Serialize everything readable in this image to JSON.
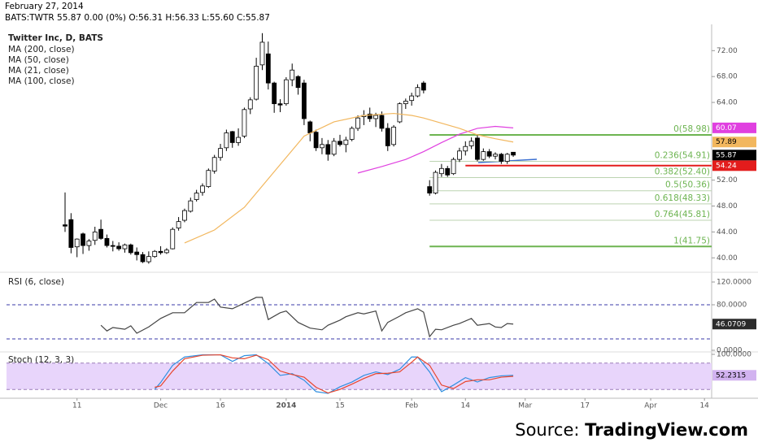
{
  "header": {
    "date": "February 27, 2014",
    "quote": "BATS:TWTR 55.87 0.00 (0%) O:56.31 H:56.33 L:55.60 C:55.87"
  },
  "source": {
    "prefix": "Source:",
    "site": "TradingView.com"
  },
  "chart_data": [
    {
      "type": "candlestick",
      "title": "Twitter Inc, D, BATS",
      "x": [
        0,
        1,
        2,
        3,
        4,
        5,
        6,
        7,
        8,
        9,
        10,
        11,
        12,
        13,
        14,
        15,
        16,
        17,
        18,
        19,
        20,
        21,
        22,
        23,
        24,
        25,
        26,
        27,
        28,
        29,
        30,
        31,
        32,
        33,
        34,
        35,
        36,
        37,
        38,
        39,
        40,
        41,
        42,
        43,
        44,
        45,
        46,
        47,
        48,
        49,
        50,
        51,
        52,
        53,
        54,
        55,
        56,
        57,
        58,
        59,
        60,
        61,
        62,
        63,
        64,
        65,
        66,
        67,
        68,
        69,
        70,
        71,
        72,
        73,
        74,
        75
      ],
      "ohlc": [
        [
          45.1,
          50.1,
          44.0,
          44.9
        ],
        [
          45.9,
          46.9,
          40.7,
          41.6
        ],
        [
          41.7,
          43.0,
          40.1,
          42.9
        ],
        [
          43.7,
          43.9,
          40.6,
          41.9
        ],
        [
          41.9,
          42.9,
          41.1,
          42.6
        ],
        [
          42.7,
          44.8,
          42.0,
          44.0
        ],
        [
          44.4,
          45.9,
          42.8,
          43.0
        ],
        [
          43.0,
          43.6,
          41.6,
          41.9
        ],
        [
          41.9,
          42.6,
          41.0,
          41.8
        ],
        [
          41.8,
          42.4,
          41.1,
          41.4
        ],
        [
          41.4,
          42.2,
          40.8,
          42.0
        ],
        [
          42.0,
          42.2,
          40.5,
          40.8
        ],
        [
          40.9,
          41.6,
          39.6,
          40.5
        ],
        [
          40.5,
          40.9,
          39.2,
          39.4
        ],
        [
          39.4,
          41.0,
          39.1,
          40.2
        ],
        [
          40.2,
          41.2,
          40.0,
          41.0
        ],
        [
          41.0,
          41.8,
          40.5,
          40.8
        ],
        [
          40.8,
          41.5,
          40.6,
          41.2
        ],
        [
          41.4,
          44.7,
          41.3,
          44.4
        ],
        [
          44.6,
          46.3,
          44.2,
          45.6
        ],
        [
          45.8,
          47.6,
          45.5,
          47.3
        ],
        [
          47.2,
          49.3,
          47.0,
          48.8
        ],
        [
          49.0,
          50.5,
          48.7,
          50.0
        ],
        [
          50.1,
          51.5,
          49.6,
          51.1
        ],
        [
          51.0,
          53.8,
          50.8,
          53.5
        ],
        [
          53.4,
          55.9,
          53.0,
          55.5
        ],
        [
          55.5,
          57.6,
          55.0,
          56.9
        ],
        [
          57.0,
          59.8,
          56.5,
          59.3
        ],
        [
          59.5,
          59.6,
          57.0,
          57.8
        ],
        [
          57.8,
          60.0,
          57.3,
          58.6
        ],
        [
          58.8,
          63.2,
          58.5,
          62.9
        ],
        [
          63.0,
          64.8,
          62.2,
          64.4
        ],
        [
          64.5,
          70.9,
          64.3,
          69.6
        ],
        [
          69.8,
          74.7,
          69.0,
          73.3
        ],
        [
          71.5,
          73.4,
          66.0,
          67.0
        ],
        [
          67.0,
          67.2,
          62.4,
          63.8
        ],
        [
          63.8,
          64.5,
          62.5,
          63.6
        ],
        [
          63.8,
          67.9,
          63.5,
          67.5
        ],
        [
          67.5,
          70.0,
          66.5,
          69.0
        ],
        [
          68.0,
          68.2,
          65.2,
          66.3
        ],
        [
          67.0,
          67.5,
          60.5,
          61.5
        ],
        [
          61.0,
          61.2,
          58.0,
          59.3
        ],
        [
          59.4,
          59.8,
          56.5,
          57.0
        ],
        [
          57.0,
          58.5,
          56.0,
          57.5
        ],
        [
          57.5,
          58.2,
          55.0,
          56.0
        ],
        [
          56.0,
          58.5,
          55.7,
          58.0
        ],
        [
          58.0,
          59.0,
          57.2,
          57.5
        ],
        [
          57.5,
          58.7,
          56.3,
          58.2
        ],
        [
          58.3,
          60.3,
          58.0,
          60.0
        ],
        [
          60.0,
          62.0,
          59.6,
          61.6
        ],
        [
          61.8,
          62.8,
          60.5,
          62.0
        ],
        [
          62.2,
          63.2,
          61.0,
          61.5
        ],
        [
          61.5,
          62.4,
          60.2,
          62.0
        ],
        [
          62.0,
          62.6,
          59.5,
          60.0
        ],
        [
          60.0,
          60.8,
          56.5,
          57.3
        ],
        [
          57.5,
          60.5,
          57.2,
          60.2
        ],
        [
          61.0,
          64.0,
          60.8,
          63.8
        ],
        [
          63.8,
          64.6,
          63.0,
          64.2
        ],
        [
          64.3,
          65.5,
          63.5,
          65.0
        ],
        [
          65.0,
          66.8,
          64.8,
          66.3
        ],
        [
          67.0,
          67.3,
          65.4,
          65.9
        ],
        [
          51.0,
          52.0,
          49.6,
          50.0
        ],
        [
          50.0,
          53.5,
          49.8,
          53.2
        ],
        [
          53.0,
          54.5,
          52.5,
          53.8
        ],
        [
          53.8,
          54.2,
          52.5,
          52.8
        ],
        [
          53.0,
          55.5,
          52.8,
          55.2
        ],
        [
          55.2,
          57.0,
          54.8,
          56.5
        ],
        [
          56.5,
          58.0,
          55.8,
          57.2
        ],
        [
          57.3,
          58.6,
          56.8,
          58.0
        ],
        [
          58.5,
          59.0,
          54.9,
          55.2
        ],
        [
          55.2,
          56.9,
          55.0,
          56.4
        ],
        [
          56.4,
          56.8,
          55.4,
          55.7
        ],
        [
          55.7,
          56.3,
          55.2,
          56.0
        ],
        [
          56.0,
          56.2,
          54.5,
          54.9
        ],
        [
          54.9,
          56.2,
          54.5,
          56.0
        ],
        [
          56.31,
          56.33,
          55.6,
          55.87
        ]
      ],
      "up_color": "#ffffff",
      "down_color": "#000000",
      "last_tag_color": "#000000",
      "series": [
        {
          "name": "MA (200, close)",
          "x": [],
          "values": []
        },
        {
          "name": "MA (50, close)",
          "color": "#e040e0",
          "x": [
            49,
            53,
            57,
            60,
            63,
            66,
            69,
            72,
            75
          ],
          "values": [
            53.1,
            54.1,
            55.2,
            56.4,
            57.8,
            59.1,
            60.0,
            60.3,
            60.07
          ]
        },
        {
          "name": "MA (21, close)",
          "color": "#f2b75e",
          "x": [
            20,
            25,
            30,
            35,
            40,
            45,
            50,
            55,
            58,
            60,
            63,
            66,
            69,
            72,
            75
          ],
          "values": [
            42.3,
            44.3,
            47.8,
            53.3,
            58.8,
            61.0,
            62.0,
            62.3,
            62.0,
            61.6,
            60.8,
            60.0,
            59.0,
            58.4,
            57.89
          ]
        },
        {
          "name": "MA (100, close)",
          "x": [],
          "values": []
        }
      ],
      "xlim": [
        -9.8,
        108.2
      ],
      "xticks": [
        {
          "value": 2,
          "label": "11"
        },
        {
          "value": 16,
          "label": "Dec"
        },
        {
          "value": 26,
          "label": "16"
        },
        {
          "value": 37,
          "label": "2014"
        },
        {
          "value": 46,
          "label": "15"
        },
        {
          "value": 58,
          "label": "Feb"
        },
        {
          "value": 67,
          "label": "14"
        },
        {
          "value": 77,
          "label": "Mar"
        },
        {
          "value": 87,
          "label": "17"
        },
        {
          "value": 98,
          "label": "Apr"
        },
        {
          "value": 107,
          "label": "14"
        }
      ],
      "ylim": [
        38.4,
        74.8
      ],
      "yticks": [
        {
          "value": 72,
          "label": "72.00"
        },
        {
          "value": 68,
          "label": "68.00"
        },
        {
          "value": 64,
          "label": "64.00"
        },
        {
          "value": 52,
          "label": "52.00"
        },
        {
          "value": 48,
          "label": "48.00"
        },
        {
          "value": 44,
          "label": "44.00"
        },
        {
          "value": 40,
          "label": "40.00"
        }
      ],
      "fib_start": 61,
      "fib_color": "#6db451",
      "fib_mid_color": "#bcd3b1",
      "fib_levels": [
        {
          "value": 58.98,
          "label": "0(58.98)"
        },
        {
          "value": 54.91,
          "label": "0.236(54.91)"
        },
        {
          "value": 52.4,
          "label": "0.382(52.40)"
        },
        {
          "value": 50.36,
          "label": "0.5(50.36)"
        },
        {
          "value": 48.33,
          "label": "0.618(48.33)"
        },
        {
          "value": 45.81,
          "label": "0.764(45.81)"
        },
        {
          "value": 41.75,
          "label": "1(41.75)"
        }
      ],
      "hline": {
        "value": 54.24,
        "color": "#e31c1c",
        "from": 67
      }
    },
    {
      "type": "line",
      "title": "RSI (6, close)",
      "ylim": [
        0,
        130
      ],
      "yticks": [
        {
          "value": 120,
          "label": "120.0000"
        },
        {
          "value": 80,
          "label": "80.0000"
        },
        {
          "value": 0,
          "label": "0.0000"
        }
      ],
      "bands": [
        20,
        80
      ],
      "band_color": "#3a3aa8",
      "tag_color": "#2b2b2b",
      "series": [
        {
          "color": "#444444",
          "x": [
            6,
            7,
            8,
            10,
            11,
            12,
            14,
            16,
            18,
            20,
            22,
            24,
            25,
            26,
            28,
            30,
            32,
            33,
            34,
            36,
            37,
            39,
            41,
            43,
            44,
            46,
            47,
            49,
            50,
            52,
            53,
            54,
            56,
            57,
            59,
            60,
            61,
            62,
            63,
            65,
            66,
            68,
            69,
            71,
            72,
            73,
            74,
            75
          ],
          "values": [
            44,
            34,
            40,
            37,
            43,
            30,
            41,
            56,
            66,
            66,
            84,
            84,
            90,
            76,
            73,
            83,
            93,
            93,
            54,
            66,
            69,
            49,
            39,
            36,
            44,
            53,
            59,
            66,
            64,
            69,
            34,
            49,
            60,
            66,
            73,
            67,
            24,
            37,
            36,
            44,
            47,
            56,
            44,
            47,
            41,
            40,
            47,
            46.0709
          ]
        }
      ]
    },
    {
      "type": "line",
      "title": "Stoch (12, 3, 3)",
      "ylim": [
        0,
        100
      ],
      "yticks": [
        {
          "value": 100,
          "label": "100.0000"
        }
      ],
      "bands": [
        20,
        80
      ],
      "band_color": "#9a7bb8",
      "band_fill": "#e8d5fb",
      "tag_color": "#d2b3f0",
      "series": [
        {
          "color": "#2f8fe0",
          "x": [
            15,
            16,
            18,
            20,
            23,
            26,
            28,
            30,
            32,
            34,
            36,
            38,
            40,
            42,
            44,
            46,
            48,
            50,
            52,
            54,
            56,
            58,
            59,
            61,
            63,
            65,
            67,
            69,
            71,
            73,
            75
          ],
          "values": [
            20,
            36,
            75,
            94,
            99,
            99,
            84,
            97,
            99,
            79,
            52,
            56,
            41,
            15,
            11,
            26,
            37,
            52,
            60,
            54,
            66,
            94,
            94,
            60,
            15,
            30,
            47,
            37,
            47,
            51,
            52.2315
          ]
        },
        {
          "color": "#e8452c",
          "x": [
            15,
            16,
            18,
            20,
            23,
            26,
            28,
            30,
            32,
            34,
            36,
            38,
            40,
            42,
            44,
            46,
            48,
            50,
            52,
            54,
            56,
            58,
            59,
            61,
            63,
            65,
            67,
            69,
            71,
            73,
            75
          ],
          "values": [
            25,
            28,
            62,
            90,
            98,
            99,
            92,
            90,
            98,
            88,
            62,
            54,
            48,
            25,
            12,
            20,
            32,
            45,
            56,
            57,
            60,
            82,
            94,
            75,
            30,
            22,
            38,
            42,
            42,
            48,
            50
          ]
        }
      ]
    }
  ]
}
